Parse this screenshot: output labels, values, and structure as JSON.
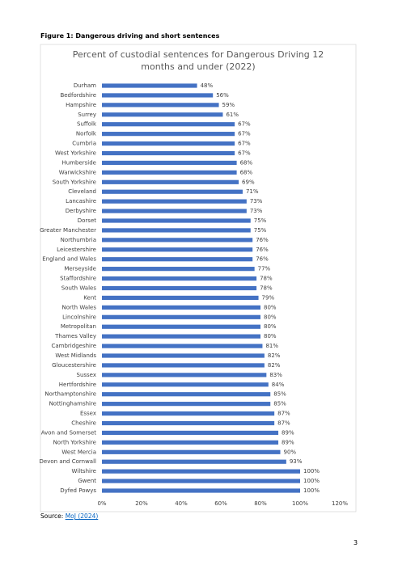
{
  "figure_label": "Figure 1: Dangerous driving and short sentences",
  "chart_data": {
    "type": "bar",
    "orientation": "horizontal",
    "title": "Percent of custodial sentences  for Dangerous Driving 12 months and under (2022)",
    "categories": [
      "Durham",
      "Bedfordshire",
      "Hampshire",
      "Surrey",
      "Suffolk",
      "Norfolk",
      "Cumbria",
      "West Yorkshire",
      "Humberside",
      "Warwickshire",
      "South Yorkshire",
      "Cleveland",
      "Lancashire",
      "Derbyshire",
      "Dorset",
      "Greater Manchester",
      "Northumbria",
      "Leicestershire",
      "England and Wales",
      "Merseyside",
      "Staffordshire",
      "South Wales",
      "Kent",
      "North Wales",
      "Lincolnshire",
      "Metropolitan",
      "Thames Valley",
      "Cambridgeshire",
      "West Midlands",
      "Gloucestershire",
      "Sussex",
      "Hertfordshire",
      "Northamptonshire",
      "Nottinghamshire",
      "Essex",
      "Cheshire",
      "Avon and Somerset",
      "North Yorkshire",
      "West Mercia",
      "Devon and Cornwall",
      "Wiltshire",
      "Gwent",
      "Dyfed Powys"
    ],
    "values": [
      48,
      56,
      59,
      61,
      67,
      67,
      67,
      67,
      68,
      68,
      69,
      71,
      73,
      73,
      75,
      75,
      76,
      76,
      76,
      77,
      78,
      78,
      79,
      80,
      80,
      80,
      80,
      81,
      82,
      82,
      83,
      84,
      85,
      85,
      87,
      87,
      89,
      89,
      90,
      93,
      100,
      100,
      100
    ],
    "value_labels": [
      "48%",
      "56%",
      "59%",
      "61%",
      "67%",
      "67%",
      "67%",
      "67%",
      "68%",
      "68%",
      "69%",
      "71%",
      "73%",
      "73%",
      "75%",
      "75%",
      "76%",
      "76%",
      "76%",
      "77%",
      "78%",
      "78%",
      "79%",
      "80%",
      "80%",
      "80%",
      "80%",
      "81%",
      "82%",
      "82%",
      "83%",
      "84%",
      "85%",
      "85%",
      "87%",
      "87%",
      "89%",
      "89%",
      "90%",
      "93%",
      "100%",
      "100%",
      "100%"
    ],
    "color": "#4472c4",
    "xlim": [
      0,
      120
    ],
    "xticks": [
      {
        "value": 0,
        "label": "0%"
      },
      {
        "value": 20,
        "label": "20%"
      },
      {
        "value": 40,
        "label": "40%"
      },
      {
        "value": 60,
        "label": "60%"
      },
      {
        "value": 80,
        "label": "80%"
      },
      {
        "value": 100,
        "label": "100%"
      },
      {
        "value": 120,
        "label": "120%"
      }
    ]
  },
  "source": {
    "prefix": "Source:",
    "link": "MoJ (2024)"
  },
  "page_number": 3
}
